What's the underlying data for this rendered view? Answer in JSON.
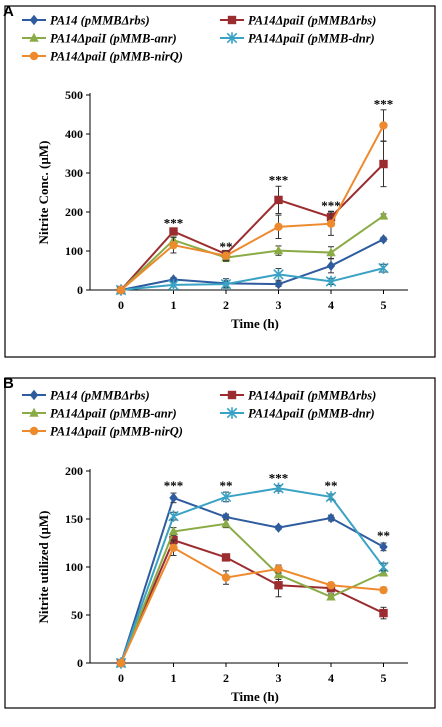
{
  "chart_data": [
    {
      "panel": "A",
      "type": "line",
      "ylabel": "Nitrite Conc. (µM)",
      "xlabel": "Time (h)",
      "ylim": [
        0,
        500
      ],
      "yticks": [
        0,
        100,
        200,
        300,
        400,
        500
      ],
      "x": [
        0,
        1,
        2,
        3,
        4,
        5
      ],
      "series": [
        {
          "name": "PA14 (pMMBΔrbs)",
          "color": "#2e5c9e",
          "marker": "diamond",
          "values": [
            0,
            27,
            17,
            15,
            62,
            130
          ],
          "err": [
            0,
            5,
            12,
            6,
            18,
            5
          ]
        },
        {
          "name": "PA14ΔpaiI (pMMBΔrbs)",
          "color": "#9b2d30",
          "marker": "square",
          "values": [
            0,
            150,
            92,
            231,
            187,
            323
          ],
          "err": [
            0,
            6,
            6,
            35,
            15,
            58
          ]
        },
        {
          "name": "PA14ΔpaiI (pMMB-anr)",
          "color": "#8aab45",
          "marker": "triangle",
          "values": [
            0,
            128,
            83,
            101,
            96,
            190
          ],
          "err": [
            0,
            8,
            10,
            12,
            15,
            5
          ]
        },
        {
          "name": "PA14ΔpaiI (pMMB-dnr)",
          "color": "#3aa2c4",
          "marker": "star",
          "values": [
            0,
            13,
            15,
            40,
            22,
            56
          ],
          "err": [
            0,
            5,
            8,
            15,
            8,
            10
          ]
        },
        {
          "name": "PA14ΔpaiI (pMMB-nirQ)",
          "color": "#ee8a2e",
          "marker": "circle",
          "values": [
            0,
            115,
            88,
            162,
            170,
            422
          ],
          "err": [
            0,
            20,
            12,
            30,
            30,
            40
          ]
        }
      ],
      "significance": [
        {
          "x": 1,
          "y": 160,
          "label": "***"
        },
        {
          "x": 2,
          "y": 100,
          "label": "**"
        },
        {
          "x": 3,
          "y": 270,
          "label": "***"
        },
        {
          "x": 4,
          "y": 205,
          "label": "***"
        },
        {
          "x": 5,
          "y": 465,
          "label": "***"
        }
      ]
    },
    {
      "panel": "B",
      "type": "line",
      "ylabel": "Nitrite utilized (µM)",
      "xlabel": "Time (h)",
      "ylim": [
        0,
        200
      ],
      "yticks": [
        0,
        50,
        100,
        150,
        200
      ],
      "x": [
        0,
        1,
        2,
        3,
        4,
        5
      ],
      "series": [
        {
          "name": "PA14 (pMMBΔrbs)",
          "color": "#2e5c9e",
          "marker": "diamond",
          "values": [
            0,
            172,
            152,
            141,
            151,
            121
          ],
          "err": [
            0,
            5,
            3,
            2,
            3,
            4
          ]
        },
        {
          "name": "PA14ΔpaiI (pMMBΔrbs)",
          "color": "#9b2d30",
          "marker": "square",
          "values": [
            0,
            128,
            110,
            81,
            78,
            52
          ],
          "err": [
            0,
            4,
            3,
            12,
            4,
            6
          ]
        },
        {
          "name": "PA14ΔpaiI (pMMB-anr)",
          "color": "#8aab45",
          "marker": "triangle",
          "values": [
            0,
            137,
            145,
            92,
            69,
            94
          ],
          "err": [
            0,
            4,
            4,
            5,
            3,
            3
          ]
        },
        {
          "name": "PA14ΔpaiI (pMMB-dnr)",
          "color": "#3aa2c4",
          "marker": "star",
          "values": [
            0,
            153,
            173,
            182,
            173,
            100
          ],
          "err": [
            0,
            4,
            5,
            3,
            3,
            4
          ]
        },
        {
          "name": "PA14ΔpaiI (pMMB-nirQ)",
          "color": "#ee8a2e",
          "marker": "circle",
          "values": [
            0,
            120,
            89,
            98,
            81,
            76
          ],
          "err": [
            0,
            8,
            7,
            4,
            3,
            3
          ]
        }
      ],
      "significance": [
        {
          "x": 1,
          "y": 180,
          "label": "***"
        },
        {
          "x": 2,
          "y": 180,
          "label": "**"
        },
        {
          "x": 3,
          "y": 188,
          "label": "***"
        },
        {
          "x": 4,
          "y": 180,
          "label": "**"
        },
        {
          "x": 5,
          "y": 128,
          "label": "**"
        }
      ]
    }
  ]
}
